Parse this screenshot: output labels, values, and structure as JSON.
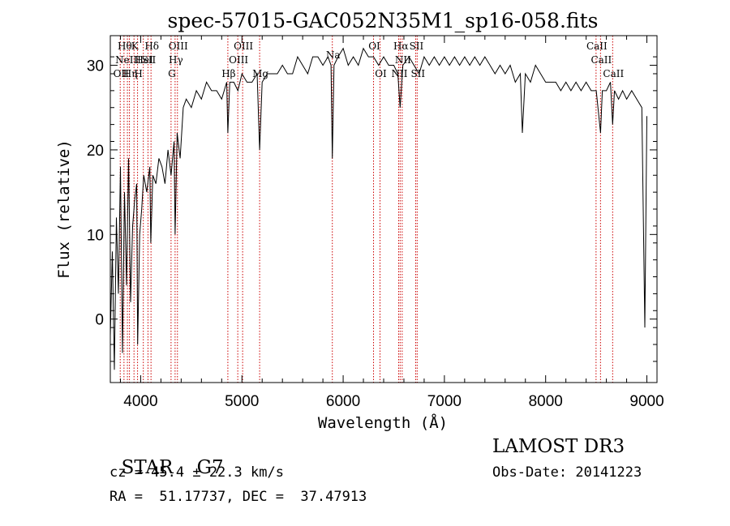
{
  "chart_data": {
    "type": "line",
    "title": "spec-57015-GAC052N35M1_sp16-058.fits",
    "xlabel": "Wavelength (Å)",
    "ylabel": "Flux (relative)",
    "xlim": [
      3700,
      9100
    ],
    "ylim": [
      -7.5,
      33.5
    ],
    "xticks": [
      4000,
      5000,
      6000,
      7000,
      8000,
      9000
    ],
    "yticks": [
      0,
      10,
      20,
      30
    ],
    "colors": {
      "spectrum": "#000000",
      "lines": "#cc0000"
    },
    "series": [
      {
        "name": "spectrum",
        "x": [
          3700,
          3720,
          3740,
          3760,
          3780,
          3800,
          3820,
          3840,
          3860,
          3880,
          3900,
          3920,
          3940,
          3960,
          3970,
          3990,
          4010,
          4030,
          4060,
          4090,
          4100,
          4120,
          4150,
          4180,
          4210,
          4240,
          4270,
          4300,
          4330,
          4340,
          4360,
          4390,
          4420,
          4450,
          4500,
          4550,
          4600,
          4650,
          4700,
          4750,
          4800,
          4850,
          4861,
          4880,
          4920,
          4960,
          5000,
          5050,
          5100,
          5150,
          5175,
          5200,
          5250,
          5300,
          5350,
          5400,
          5450,
          5500,
          5550,
          5600,
          5650,
          5700,
          5750,
          5800,
          5850,
          5880,
          5893,
          5910,
          5950,
          6000,
          6050,
          6100,
          6150,
          6200,
          6250,
          6300,
          6350,
          6400,
          6450,
          6500,
          6540,
          6563,
          6590,
          6650,
          6700,
          6750,
          6800,
          6850,
          6900,
          6950,
          7000,
          7050,
          7100,
          7150,
          7200,
          7250,
          7300,
          7350,
          7400,
          7450,
          7500,
          7550,
          7600,
          7650,
          7700,
          7750,
          7770,
          7800,
          7850,
          7900,
          7950,
          8000,
          8050,
          8100,
          8150,
          8200,
          8250,
          8300,
          8350,
          8400,
          8450,
          8500,
          8542,
          8560,
          8600,
          8640,
          8662,
          8680,
          8720,
          8760,
          8800,
          8850,
          8900,
          8950,
          8980,
          9000
        ],
        "values": [
          -2,
          8,
          -6,
          12,
          3,
          18,
          -4,
          15,
          4,
          19,
          2,
          11,
          14,
          16,
          -3,
          10,
          13,
          17,
          15,
          18,
          9,
          17,
          16,
          19,
          18,
          16,
          20,
          17,
          21,
          10,
          22,
          19,
          25,
          26,
          25,
          27,
          26,
          28,
          27,
          27,
          26,
          28,
          22,
          28,
          28,
          27,
          29,
          28,
          28,
          29,
          20,
          28,
          29,
          29,
          29,
          30,
          29,
          29,
          31,
          30,
          29,
          31,
          31,
          30,
          31,
          30,
          19,
          30,
          31,
          32,
          30,
          31,
          30,
          32,
          31,
          31,
          30,
          31,
          30,
          30,
          29,
          25,
          30,
          31,
          30,
          29,
          31,
          30,
          31,
          30,
          31,
          30,
          31,
          30,
          31,
          30,
          31,
          30,
          31,
          30,
          29,
          30,
          29,
          30,
          28,
          29,
          22,
          29,
          28,
          30,
          29,
          28,
          28,
          28,
          27,
          28,
          27,
          28,
          27,
          28,
          27,
          27,
          22,
          27,
          27,
          28,
          23,
          27,
          26,
          27,
          26,
          27,
          26,
          25,
          -1,
          24
        ]
      }
    ],
    "spectral_lines": [
      {
        "wl": 3798,
        "label": "OII",
        "row": 3
      },
      {
        "wl": 3835,
        "label": "Hθ",
        "row": 1
      },
      {
        "wl": 3869,
        "label": "NeIII",
        "row": 2
      },
      {
        "wl": 3889,
        "label": "Hη",
        "row": 3
      },
      {
        "wl": 3934,
        "label": "K",
        "row": 1
      },
      {
        "wl": 3969,
        "label": "H",
        "row": 3
      },
      {
        "wl": 4026,
        "label": "HeI",
        "row": 2
      },
      {
        "wl": 4072,
        "label": "SII",
        "row": 2
      },
      {
        "wl": 4102,
        "label": "Hδ",
        "row": 1
      },
      {
        "wl": 4300,
        "label": "G",
        "row": 3
      },
      {
        "wl": 4340,
        "label": "Hγ",
        "row": 2
      },
      {
        "wl": 4363,
        "label": "OIII",
        "row": 1
      },
      {
        "wl": 4861,
        "label": "Hβ",
        "row": 3
      },
      {
        "wl": 4959,
        "label": "OIII",
        "row": 2
      },
      {
        "wl": 5007,
        "label": "OIII",
        "row": 1
      },
      {
        "wl": 5175,
        "label": "Mg",
        "row": 3
      },
      {
        "wl": 5893,
        "label": "Na",
        "row": 0
      },
      {
        "wl": 6300,
        "label": "OI",
        "row": 1
      },
      {
        "wl": 6364,
        "label": "OI",
        "row": 3
      },
      {
        "wl": 6548,
        "label": "NII",
        "row": 3
      },
      {
        "wl": 6563,
        "label": "Hα",
        "row": 1
      },
      {
        "wl": 6583,
        "label": "NII",
        "row": 2
      },
      {
        "wl": 6716,
        "label": "SII",
        "row": 1
      },
      {
        "wl": 6731,
        "label": "SII",
        "row": 3
      },
      {
        "wl": 8498,
        "label": "CaII",
        "row": 1
      },
      {
        "wl": 8542,
        "label": "CaII",
        "row": 2
      },
      {
        "wl": 8662,
        "label": "CaII",
        "row": 3
      }
    ]
  },
  "info": {
    "class": "STAR",
    "subclass": "G7",
    "survey": "LAMOST DR3",
    "cz": "cz = 45.4 ± 22.3 km/s",
    "obs_date": "Obs-Date: 20141223",
    "coords": "RA =  51.17737, DEC =  37.47913"
  }
}
